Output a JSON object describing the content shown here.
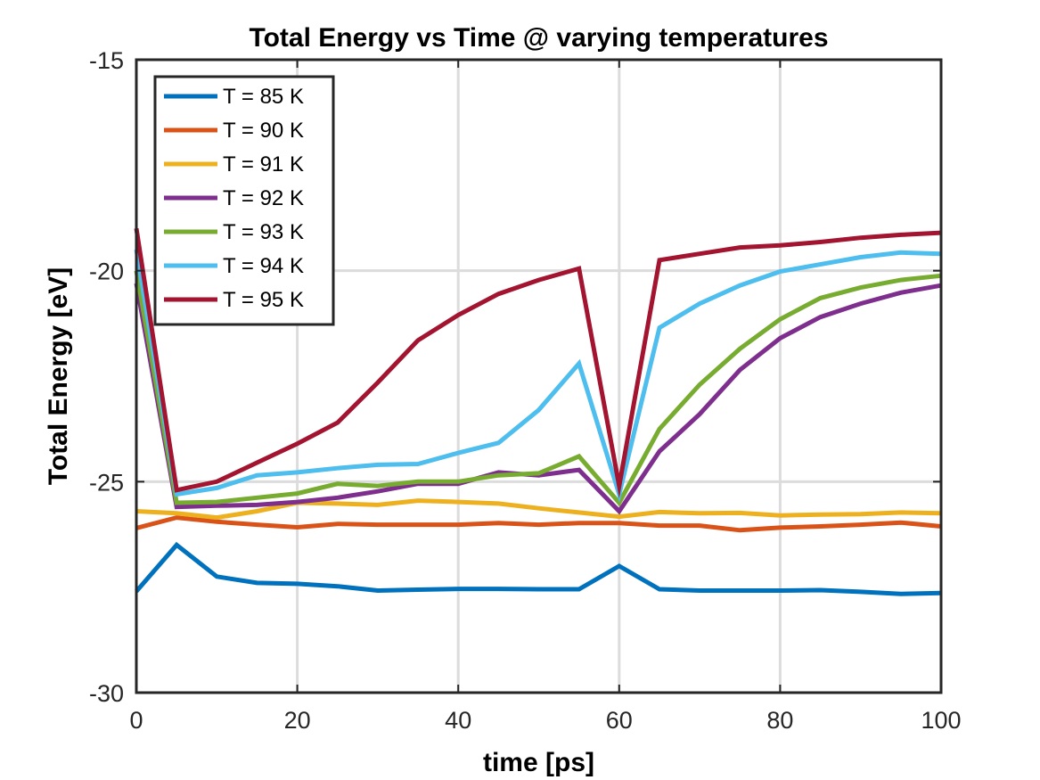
{
  "chart_data": {
    "type": "line",
    "title": "Total Energy vs Time @ varying temperatures",
    "xlabel": "time [ps]",
    "ylabel": "Total Energy [eV]",
    "xlim": [
      0,
      100
    ],
    "ylim": [
      -30,
      -15
    ],
    "xticks": [
      0,
      20,
      40,
      60,
      80,
      100
    ],
    "yticks": [
      -30,
      -25,
      -20,
      -15
    ],
    "xtick_labels": [
      "0",
      "20",
      "40",
      "60",
      "80",
      "100"
    ],
    "ytick_labels": [
      "-30",
      "-25",
      "-20",
      "-15"
    ],
    "grid": true,
    "legend_position": "top-left",
    "x": [
      0,
      5,
      10,
      15,
      20,
      25,
      30,
      35,
      40,
      45,
      50,
      55,
      60,
      65,
      70,
      75,
      80,
      85,
      90,
      95,
      100
    ],
    "series": [
      {
        "name": "T = 85 K",
        "color": "#0072BD",
        "values": [
          -27.6,
          -26.5,
          -27.25,
          -27.4,
          -27.42,
          -27.48,
          -27.58,
          -27.56,
          -27.54,
          -27.54,
          -27.55,
          -27.55,
          -27.0,
          -27.55,
          -27.58,
          -27.58,
          -27.58,
          -27.57,
          -27.61,
          -27.66,
          -27.64
        ]
      },
      {
        "name": "T = 90 K",
        "color": "#D95319",
        "values": [
          -26.1,
          -25.85,
          -25.95,
          -26.02,
          -26.08,
          -26.0,
          -26.02,
          -26.02,
          -26.02,
          -25.98,
          -26.02,
          -25.98,
          -25.98,
          -26.04,
          -26.04,
          -26.15,
          -26.09,
          -26.06,
          -26.02,
          -25.97,
          -26.06
        ]
      },
      {
        "name": "T = 91 K",
        "color": "#EDB120",
        "values": [
          -25.7,
          -25.75,
          -25.85,
          -25.7,
          -25.5,
          -25.52,
          -25.55,
          -25.45,
          -25.48,
          -25.52,
          -25.63,
          -25.73,
          -25.83,
          -25.72,
          -25.75,
          -25.74,
          -25.8,
          -25.78,
          -25.77,
          -25.73,
          -25.75
        ]
      },
      {
        "name": "T = 92 K",
        "color": "#7E2F8E",
        "values": [
          -20.3,
          -25.6,
          -25.57,
          -25.55,
          -25.48,
          -25.38,
          -25.23,
          -25.05,
          -25.05,
          -24.78,
          -24.85,
          -24.72,
          -25.7,
          -24.28,
          -23.4,
          -22.35,
          -21.6,
          -21.1,
          -20.78,
          -20.52,
          -20.35
        ]
      },
      {
        "name": "T = 93 K",
        "color": "#77AC30",
        "values": [
          -20.0,
          -25.5,
          -25.48,
          -25.38,
          -25.28,
          -25.05,
          -25.1,
          -25.0,
          -25.0,
          -24.85,
          -24.8,
          -24.4,
          -25.5,
          -23.75,
          -22.7,
          -21.85,
          -21.15,
          -20.65,
          -20.4,
          -20.22,
          -20.12
        ]
      },
      {
        "name": "T = 94 K",
        "color": "#4DBEEE",
        "values": [
          -19.5,
          -25.3,
          -25.15,
          -24.85,
          -24.78,
          -24.68,
          -24.6,
          -24.58,
          -24.32,
          -24.08,
          -23.3,
          -22.2,
          -25.3,
          -21.35,
          -20.78,
          -20.35,
          -20.02,
          -19.85,
          -19.68,
          -19.57,
          -19.6
        ]
      },
      {
        "name": "T = 95 K",
        "color": "#A2142F",
        "values": [
          -19.0,
          -25.2,
          -25.0,
          -24.55,
          -24.1,
          -23.6,
          -22.65,
          -21.65,
          -21.05,
          -20.55,
          -20.22,
          -19.95,
          -25.1,
          -19.75,
          -19.6,
          -19.45,
          -19.4,
          -19.32,
          -19.22,
          -19.15,
          -19.1
        ]
      }
    ]
  }
}
